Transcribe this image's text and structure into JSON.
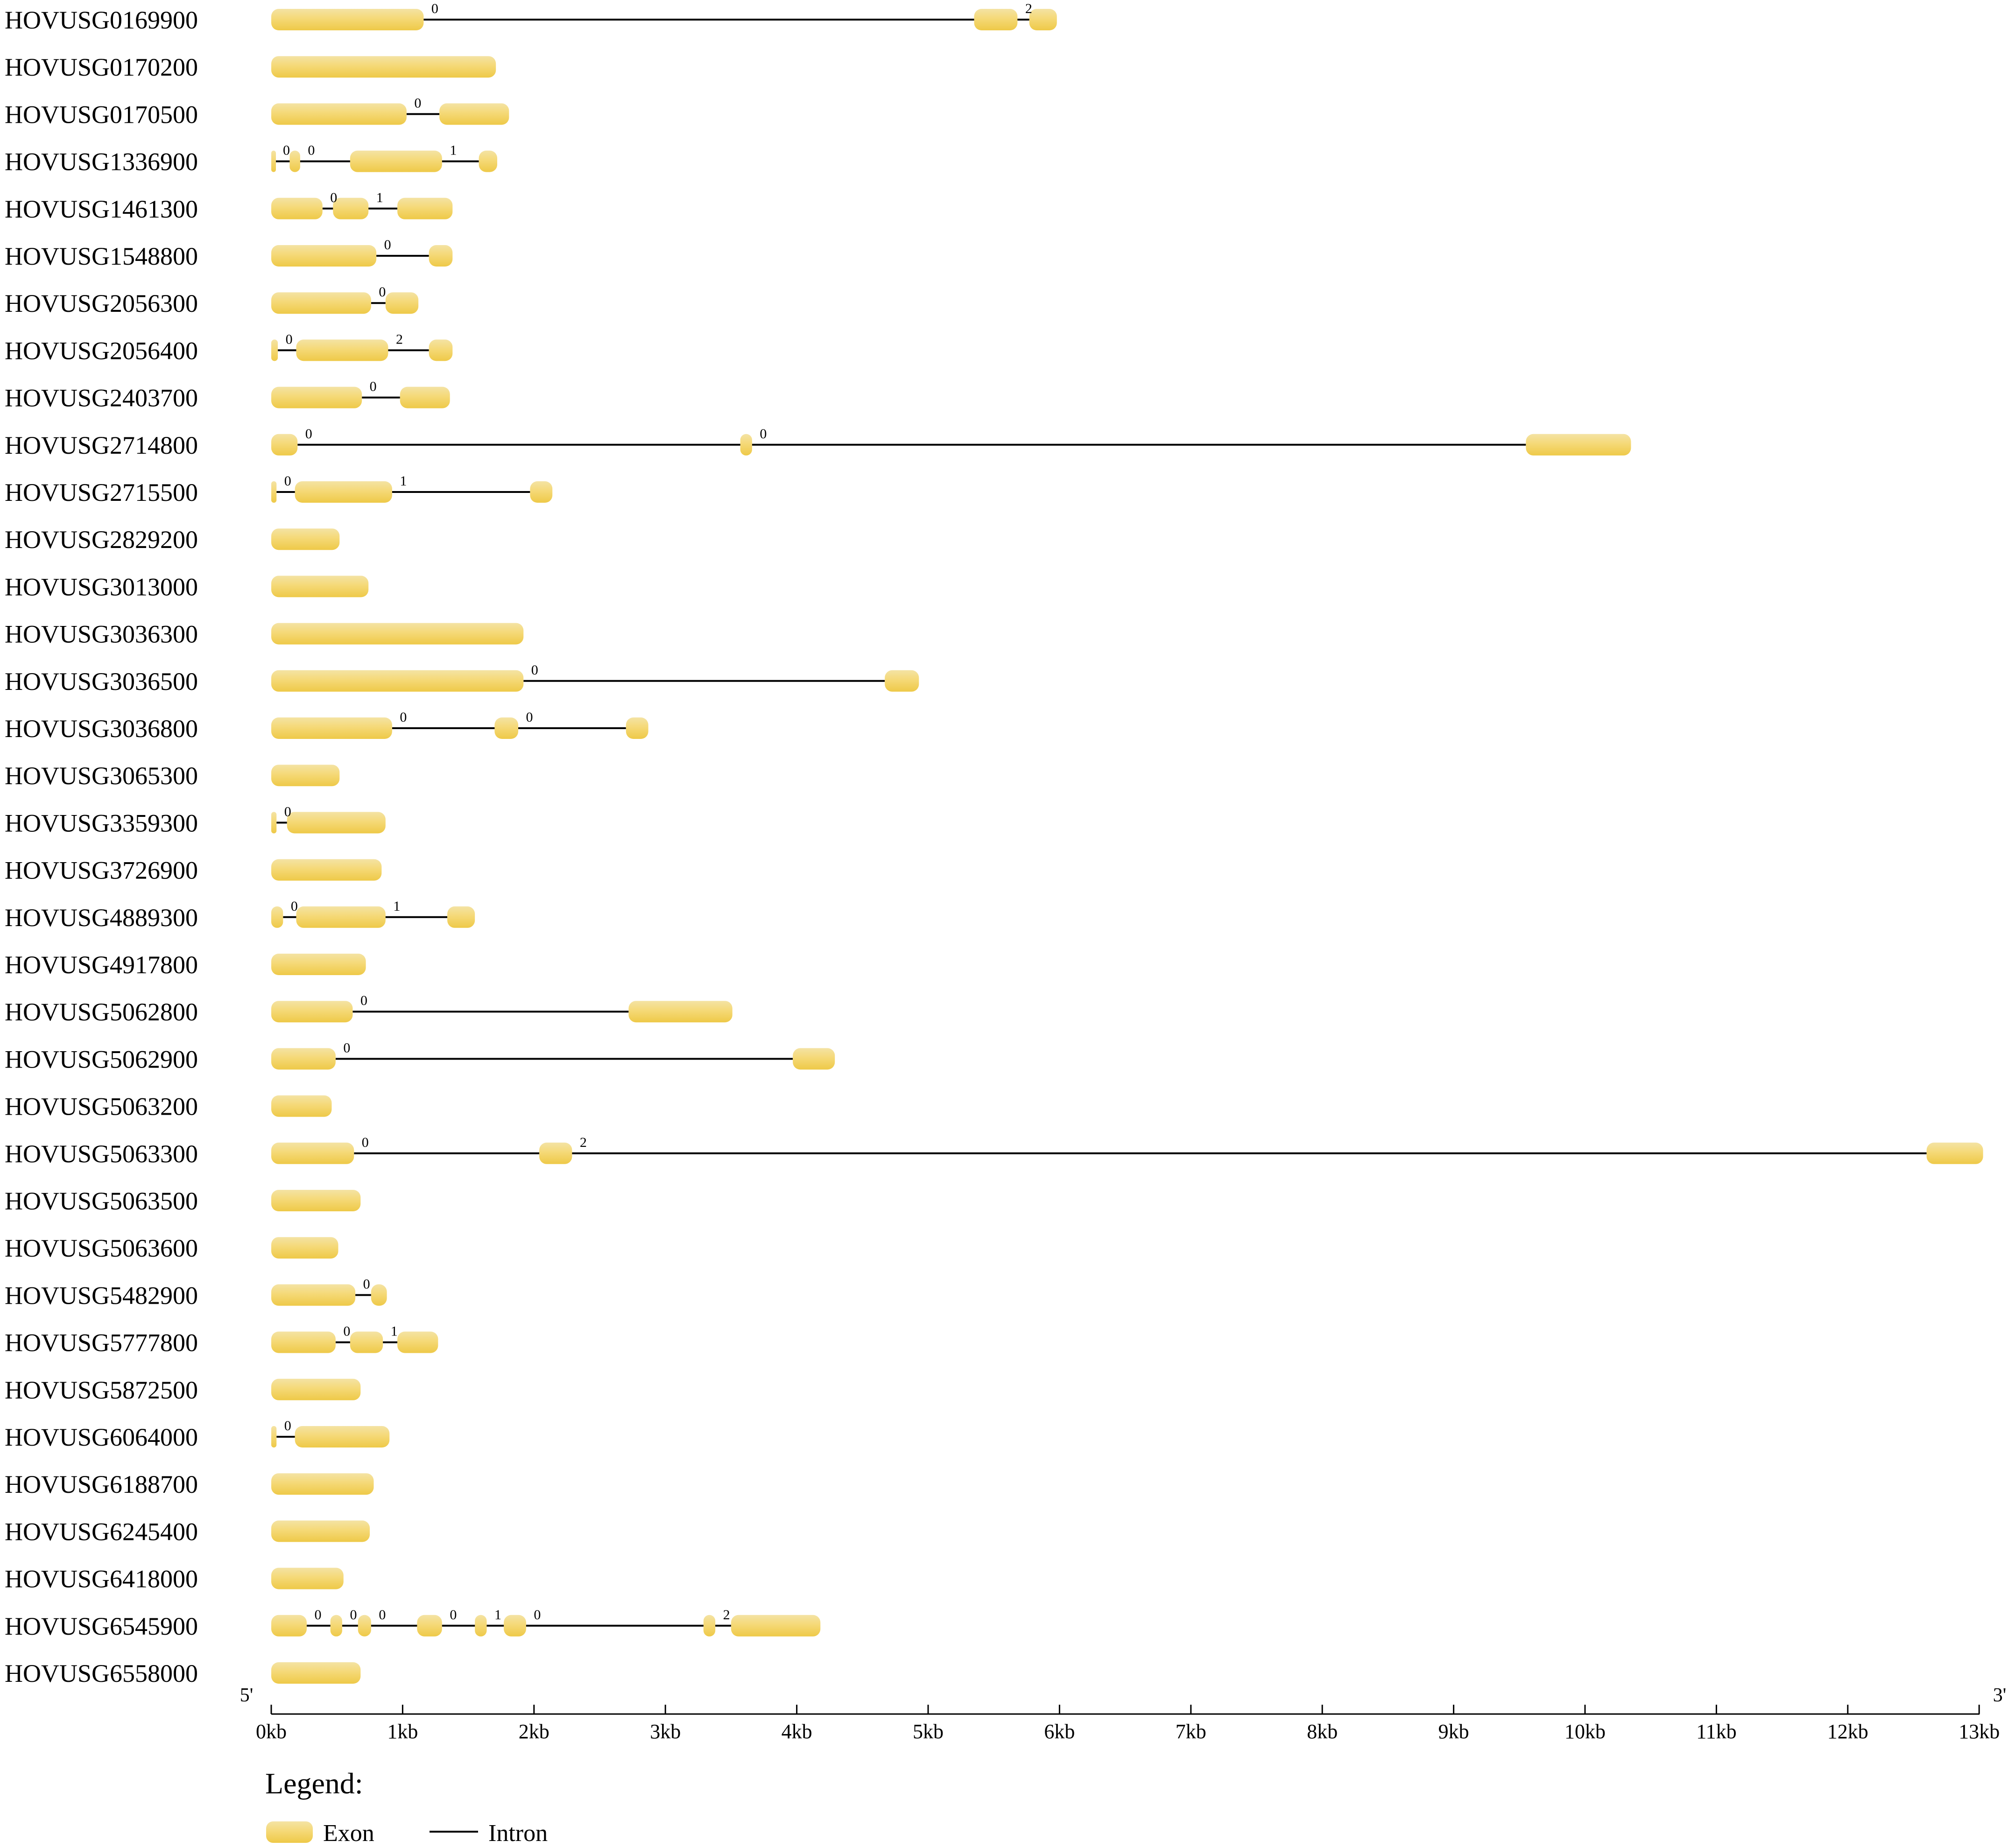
{
  "figure": {
    "end_labels": {
      "five_prime": "5'",
      "three_prime": "3'"
    },
    "legend": {
      "title": "Legend:",
      "exon_label": "Exon",
      "intron_label": "Intron"
    },
    "colors": {
      "exon_top": "#f4e3a4",
      "exon_mid": "#f5d977",
      "exon_bottom": "#eec948",
      "intron_line": "#000000",
      "text": "#000000"
    }
  },
  "chart_data": {
    "type": "gene-structure",
    "unit": "kb",
    "x_range": [
      0,
      13
    ],
    "x_tick_labels": [
      "0kb",
      "1kb",
      "2kb",
      "3kb",
      "4kb",
      "5kb",
      "6kb",
      "7kb",
      "8kb",
      "9kb",
      "10kb",
      "11kb",
      "12kb",
      "13kb"
    ],
    "genes": [
      {
        "name": "HOVUSG0169900",
        "exons": [
          [
            0,
            1.16
          ],
          [
            5.35,
            5.68
          ],
          [
            5.77,
            5.98
          ]
        ],
        "phases": [
          "0",
          "2"
        ]
      },
      {
        "name": "HOVUSG0170200",
        "exons": [
          [
            0,
            1.71
          ]
        ],
        "phases": []
      },
      {
        "name": "HOVUSG0170500",
        "exons": [
          [
            0,
            1.03
          ],
          [
            1.28,
            1.81
          ]
        ],
        "phases": [
          "0"
        ]
      },
      {
        "name": "HOVUSG1336900",
        "exons": [
          [
            0,
            0.03
          ],
          [
            0.14,
            0.22
          ],
          [
            0.6,
            1.3
          ],
          [
            1.58,
            1.72
          ]
        ],
        "phases": [
          "0",
          "0",
          "1"
        ]
      },
      {
        "name": "HOVUSG1461300",
        "exons": [
          [
            0,
            0.39
          ],
          [
            0.47,
            0.74
          ],
          [
            0.96,
            1.38
          ]
        ],
        "phases": [
          "0",
          "1"
        ]
      },
      {
        "name": "HOVUSG1548800",
        "exons": [
          [
            0,
            0.8
          ],
          [
            1.2,
            1.38
          ]
        ],
        "phases": [
          "0"
        ]
      },
      {
        "name": "HOVUSG2056300",
        "exons": [
          [
            0,
            0.76
          ],
          [
            0.87,
            1.12
          ]
        ],
        "phases": [
          "0"
        ]
      },
      {
        "name": "HOVUSG2056400",
        "exons": [
          [
            0,
            0.05
          ],
          [
            0.19,
            0.89
          ],
          [
            1.2,
            1.38
          ]
        ],
        "phases": [
          "0",
          "2"
        ]
      },
      {
        "name": "HOVUSG2403700",
        "exons": [
          [
            0,
            0.69
          ],
          [
            0.98,
            1.36
          ]
        ],
        "phases": [
          "0"
        ]
      },
      {
        "name": "HOVUSG2714800",
        "exons": [
          [
            0,
            0.2
          ],
          [
            3.57,
            3.66
          ],
          [
            9.55,
            10.35
          ]
        ],
        "phases": [
          "0",
          "0"
        ]
      },
      {
        "name": "HOVUSG2715500",
        "exons": [
          [
            0,
            0.04
          ],
          [
            0.18,
            0.92
          ],
          [
            1.97,
            2.14
          ]
        ],
        "phases": [
          "0",
          "1"
        ]
      },
      {
        "name": "HOVUSG2829200",
        "exons": [
          [
            0,
            0.52
          ]
        ],
        "phases": []
      },
      {
        "name": "HOVUSG3013000",
        "exons": [
          [
            0,
            0.74
          ]
        ],
        "phases": []
      },
      {
        "name": "HOVUSG3036300",
        "exons": [
          [
            0,
            1.92
          ]
        ],
        "phases": []
      },
      {
        "name": "HOVUSG3036500",
        "exons": [
          [
            0,
            1.92
          ],
          [
            4.67,
            4.93
          ]
        ],
        "phases": [
          "0"
        ]
      },
      {
        "name": "HOVUSG3036800",
        "exons": [
          [
            0,
            0.92
          ],
          [
            1.7,
            1.88
          ],
          [
            2.7,
            2.87
          ]
        ],
        "phases": [
          "0",
          "0"
        ]
      },
      {
        "name": "HOVUSG3065300",
        "exons": [
          [
            0,
            0.52
          ]
        ],
        "phases": []
      },
      {
        "name": "HOVUSG3359300",
        "exons": [
          [
            0,
            0.04
          ],
          [
            0.12,
            0.87
          ]
        ],
        "phases": [
          "0"
        ]
      },
      {
        "name": "HOVUSG3726900",
        "exons": [
          [
            0,
            0.84
          ]
        ],
        "phases": []
      },
      {
        "name": "HOVUSG4889300",
        "exons": [
          [
            0,
            0.09
          ],
          [
            0.19,
            0.87
          ],
          [
            1.34,
            1.55
          ]
        ],
        "phases": [
          "0",
          "1"
        ]
      },
      {
        "name": "HOVUSG4917800",
        "exons": [
          [
            0,
            0.72
          ]
        ],
        "phases": []
      },
      {
        "name": "HOVUSG5062800",
        "exons": [
          [
            0,
            0.62
          ],
          [
            2.72,
            3.51
          ]
        ],
        "phases": [
          "0"
        ]
      },
      {
        "name": "HOVUSG5062900",
        "exons": [
          [
            0,
            0.49
          ],
          [
            3.97,
            4.29
          ]
        ],
        "phases": [
          "0"
        ]
      },
      {
        "name": "HOVUSG5063200",
        "exons": [
          [
            0,
            0.46
          ]
        ],
        "phases": []
      },
      {
        "name": "HOVUSG5063300",
        "exons": [
          [
            0,
            0.63
          ],
          [
            2.04,
            2.29
          ],
          [
            12.6,
            13.03
          ]
        ],
        "phases": [
          "0",
          "2"
        ]
      },
      {
        "name": "HOVUSG5063500",
        "exons": [
          [
            0,
            0.68
          ]
        ],
        "phases": []
      },
      {
        "name": "HOVUSG5063600",
        "exons": [
          [
            0,
            0.51
          ]
        ],
        "phases": []
      },
      {
        "name": "HOVUSG5482900",
        "exons": [
          [
            0,
            0.64
          ],
          [
            0.76,
            0.88
          ]
        ],
        "phases": [
          "0"
        ]
      },
      {
        "name": "HOVUSG5777800",
        "exons": [
          [
            0,
            0.49
          ],
          [
            0.6,
            0.85
          ],
          [
            0.96,
            1.27
          ]
        ],
        "phases": [
          "0",
          "1"
        ]
      },
      {
        "name": "HOVUSG5872500",
        "exons": [
          [
            0,
            0.68
          ]
        ],
        "phases": []
      },
      {
        "name": "HOVUSG6064000",
        "exons": [
          [
            0,
            0.04
          ],
          [
            0.18,
            0.9
          ]
        ],
        "phases": [
          "0"
        ]
      },
      {
        "name": "HOVUSG6188700",
        "exons": [
          [
            0,
            0.78
          ]
        ],
        "phases": []
      },
      {
        "name": "HOVUSG6245400",
        "exons": [
          [
            0,
            0.75
          ]
        ],
        "phases": []
      },
      {
        "name": "HOVUSG6418000",
        "exons": [
          [
            0,
            0.55
          ]
        ],
        "phases": []
      },
      {
        "name": "HOVUSG6545900",
        "exons": [
          [
            0,
            0.27
          ],
          [
            0.45,
            0.54
          ],
          [
            0.66,
            0.76
          ],
          [
            1.11,
            1.3
          ],
          [
            1.55,
            1.64
          ],
          [
            1.77,
            1.94
          ],
          [
            3.29,
            3.38
          ],
          [
            3.5,
            4.18
          ]
        ],
        "phases": [
          "0",
          "0",
          "0",
          "0",
          "1",
          "0",
          "2"
        ]
      },
      {
        "name": "HOVUSG6558000",
        "exons": [
          [
            0,
            0.68
          ]
        ],
        "phases": []
      }
    ]
  }
}
